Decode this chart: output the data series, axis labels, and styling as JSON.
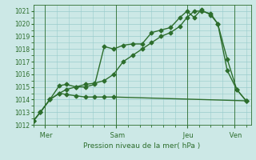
{
  "bg_color": "#cce8e6",
  "grid_color": "#99cccc",
  "line_color": "#2d6e2d",
  "marker_color": "#2d6e2d",
  "text_color": "#2d6e2d",
  "xlabel_text": "Pression niveau de la mer( hPa )",
  "ylim": [
    1012,
    1021.5
  ],
  "yticks": [
    1012,
    1013,
    1014,
    1015,
    1016,
    1017,
    1018,
    1019,
    1020,
    1021
  ],
  "day_labels": [
    " Mer",
    " Sam",
    " Jeu",
    " Ven"
  ],
  "day_positions": [
    0.5,
    3.5,
    6.5,
    8.5
  ],
  "vline_positions": [
    0.5,
    3.5,
    6.5,
    8.5
  ],
  "series1_x": [
    0.0,
    0.3,
    0.7,
    1.1,
    1.4,
    1.8,
    2.2,
    2.6,
    3.0,
    3.4,
    3.8,
    4.2,
    4.6,
    5.0,
    5.4,
    5.8,
    6.2,
    6.5,
    6.8,
    7.1,
    7.5,
    7.8,
    8.2,
    8.6,
    9.0
  ],
  "series1_y": [
    1012.3,
    1013.0,
    1014.0,
    1015.1,
    1015.2,
    1015.0,
    1015.0,
    1015.2,
    1018.2,
    1018.0,
    1018.3,
    1018.4,
    1018.4,
    1019.3,
    1019.5,
    1019.7,
    1020.5,
    1021.0,
    1020.5,
    1021.1,
    1020.7,
    1020.0,
    1017.2,
    1014.8,
    1013.9
  ],
  "series2_x": [
    0.0,
    0.3,
    0.7,
    1.1,
    1.4,
    1.8,
    2.2,
    2.6,
    3.0,
    3.4,
    3.8,
    4.2,
    4.6,
    5.0,
    5.4,
    5.8,
    6.2,
    6.5,
    6.8,
    7.1,
    7.5,
    7.8,
    8.2,
    8.6,
    9.0
  ],
  "series2_y": [
    1012.3,
    1013.0,
    1014.0,
    1014.5,
    1014.8,
    1015.0,
    1015.2,
    1015.3,
    1015.5,
    1016.0,
    1017.0,
    1017.5,
    1018.0,
    1018.5,
    1019.0,
    1019.3,
    1019.8,
    1020.5,
    1021.0,
    1021.0,
    1020.8,
    1020.0,
    1016.3,
    1014.8,
    1013.9
  ],
  "series3_x": [
    0.0,
    0.3,
    0.7,
    1.1,
    1.4,
    1.8,
    2.2,
    2.6,
    3.0,
    3.4,
    9.0
  ],
  "series3_y": [
    1012.3,
    1013.0,
    1014.0,
    1014.5,
    1014.4,
    1014.3,
    1014.2,
    1014.2,
    1014.2,
    1014.2,
    1013.9
  ]
}
